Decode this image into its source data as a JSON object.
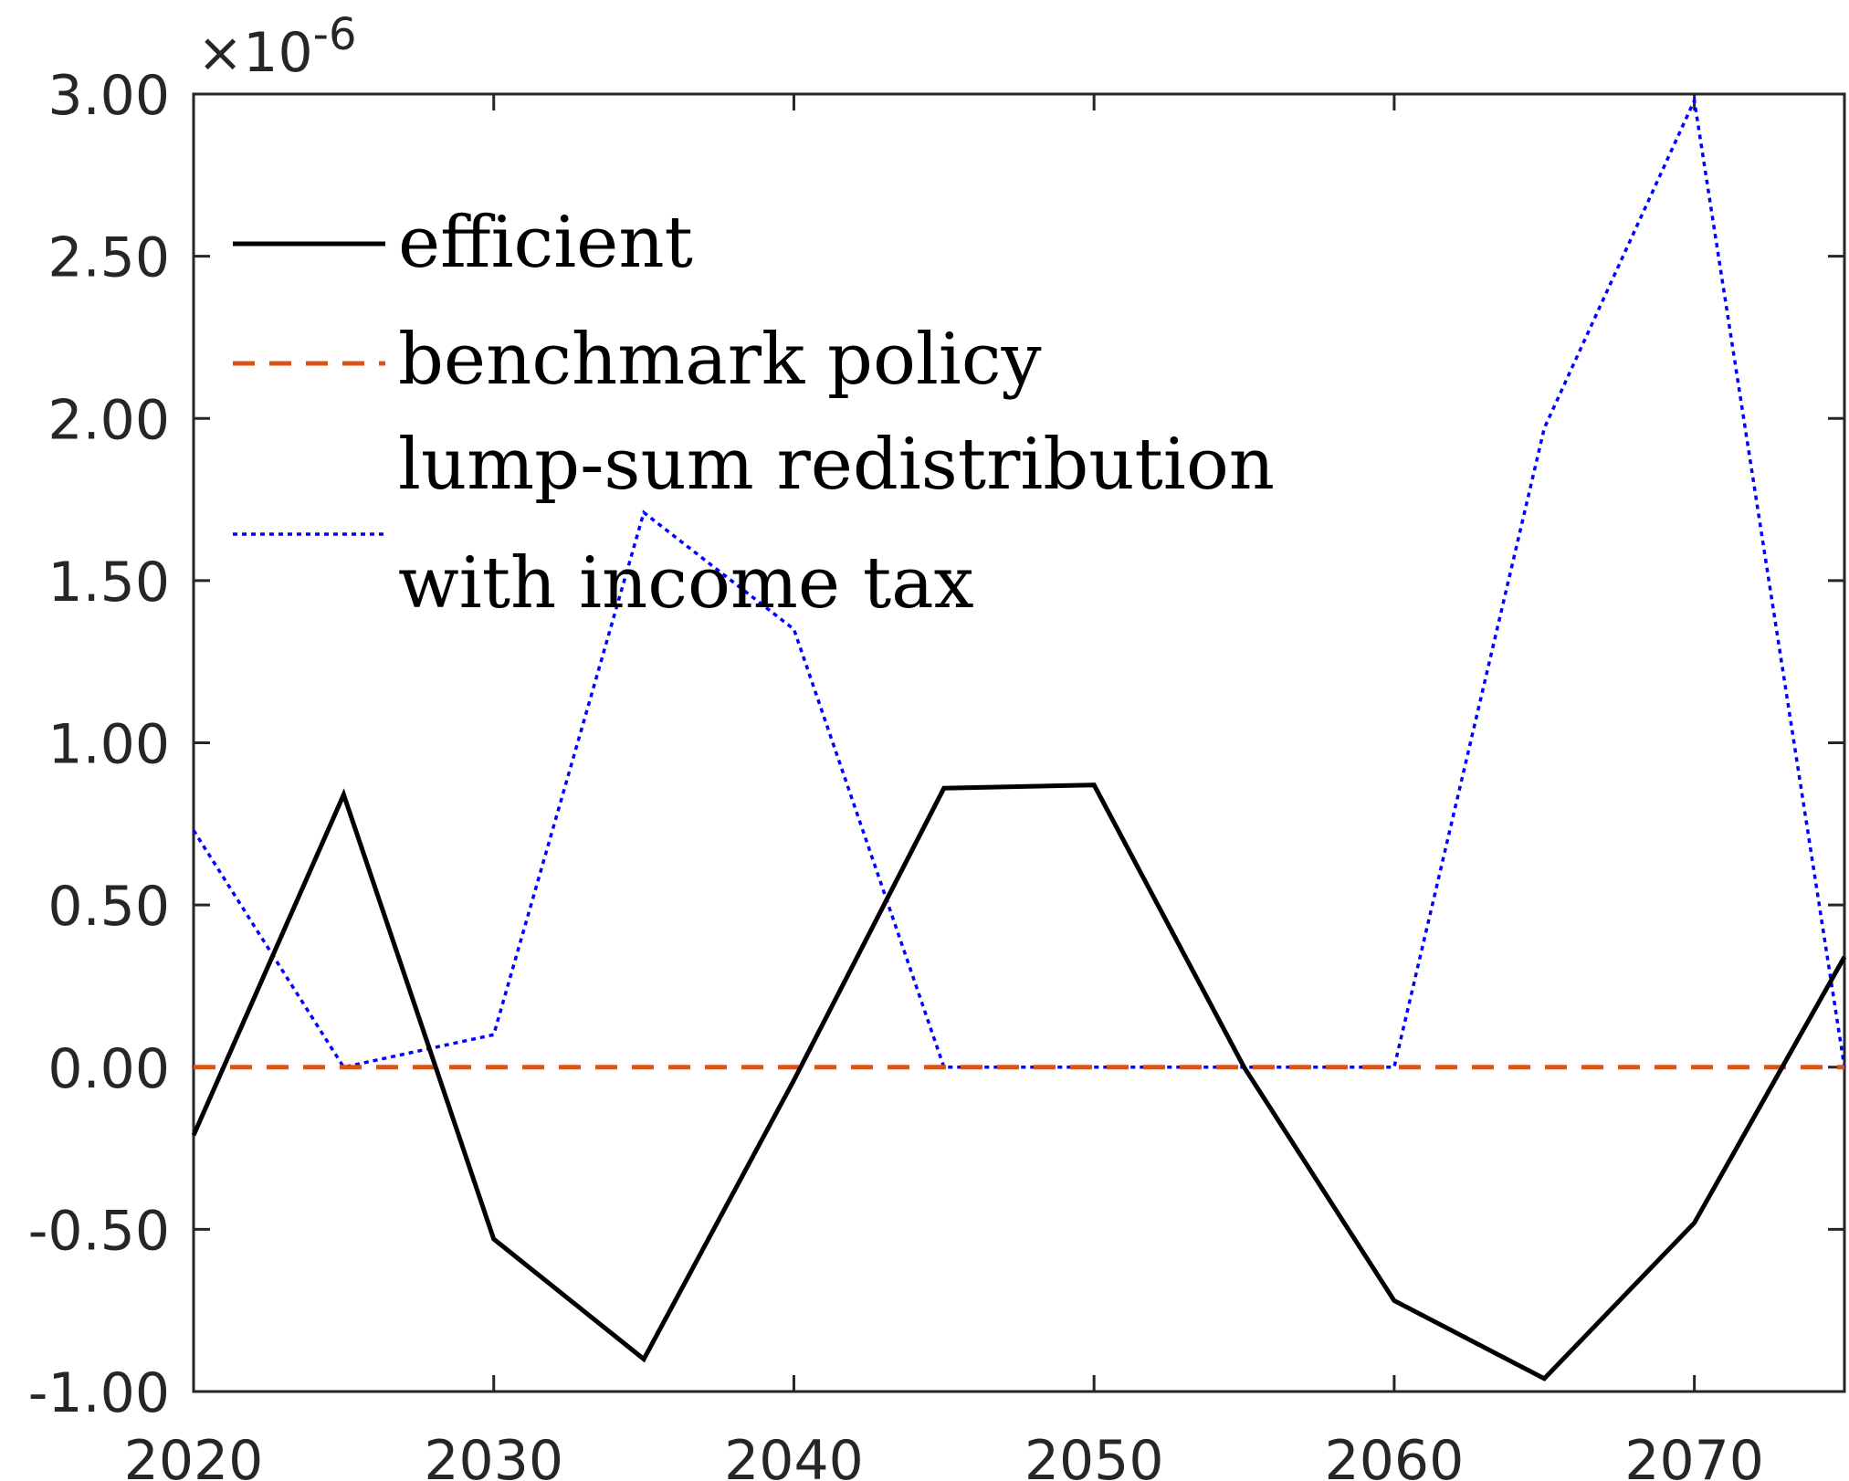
{
  "chart_data": {
    "type": "line",
    "title": "",
    "xlabel": "",
    "ylabel": "",
    "y_multiplier_label": {
      "base": "×10",
      "exponent": "-6"
    },
    "xlim": [
      2020,
      2075
    ],
    "ylim": [
      -1.0,
      3.0
    ],
    "x_ticks": [
      2020,
      2030,
      2040,
      2050,
      2060,
      2070
    ],
    "x_tick_labels": [
      "2020",
      "2030",
      "2040",
      "2050",
      "2060",
      "2070"
    ],
    "y_ticks": [
      -1.0,
      -0.5,
      0.0,
      0.5,
      1.0,
      1.5,
      2.0,
      2.5,
      3.0
    ],
    "y_tick_labels": [
      "-1.00",
      "-0.50",
      "0.00",
      "0.50",
      "1.00",
      "1.50",
      "2.00",
      "2.50",
      "3.00"
    ],
    "grid": false,
    "legend_position": "top-left",
    "series": [
      {
        "name": "efficient",
        "style": "solid",
        "color": "#000000",
        "x": [
          2020,
          2025,
          2030,
          2035,
          2040,
          2045,
          2050,
          2055,
          2060,
          2065,
          2070,
          2075
        ],
        "values": [
          -0.21,
          0.84,
          -0.53,
          -0.9,
          -0.04,
          0.86,
          0.87,
          0.0,
          -0.72,
          -0.96,
          -0.48,
          0.34
        ]
      },
      {
        "name": "benchmark policy",
        "style": "dashed",
        "color": "#D95319",
        "x": [
          2020,
          2025,
          2030,
          2035,
          2040,
          2045,
          2050,
          2055,
          2060,
          2065,
          2070,
          2075
        ],
        "values": [
          0,
          0,
          0,
          0,
          0,
          0,
          0,
          0,
          0,
          0,
          0,
          0
        ]
      },
      {
        "name": "lump-sum redistribution with income tax",
        "legend_lines": [
          "lump-sum redistribution",
          "with income tax"
        ],
        "style": "dotted",
        "color": "#0000FF",
        "x": [
          2020,
          2025,
          2030,
          2035,
          2040,
          2045,
          2050,
          2055,
          2060,
          2065,
          2070,
          2075
        ],
        "values": [
          0.73,
          0.0,
          0.1,
          1.71,
          1.35,
          0.0,
          0.0,
          0.0,
          0.0,
          1.97,
          2.98,
          0.0
        ]
      }
    ]
  }
}
